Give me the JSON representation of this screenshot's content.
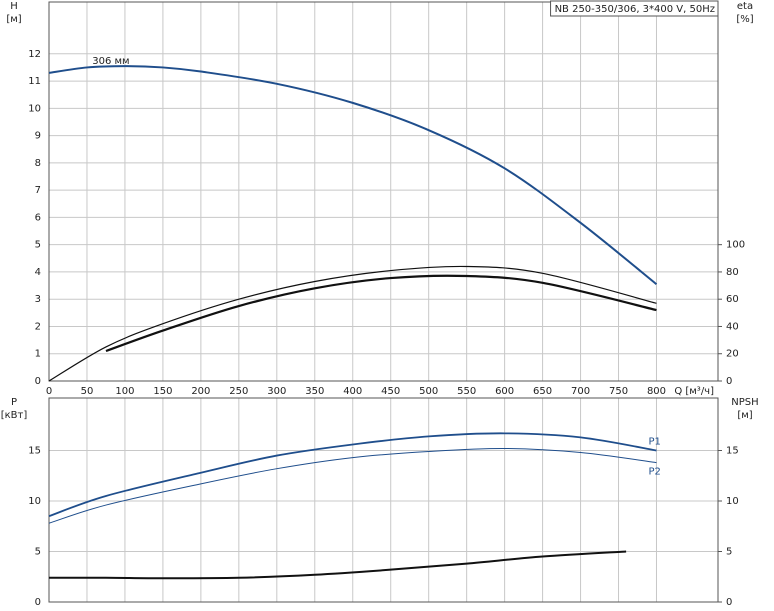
{
  "chart_data": [
    {
      "type": "line",
      "title": "NB 250-350/306, 3*400 V, 50Hz",
      "x_label": "Q [м³/ч]",
      "y_label": [
        "H",
        "[м]"
      ],
      "y2_label": [
        "eta",
        "[%]"
      ],
      "xlim": [
        0,
        881
      ],
      "ylim": [
        0,
        13.9
      ],
      "y2lim": [
        0,
        278
      ],
      "grid": true,
      "xticks": [
        0,
        50,
        100,
        150,
        200,
        250,
        300,
        350,
        400,
        450,
        500,
        550,
        600,
        650,
        700,
        750,
        800
      ],
      "yticks": [
        0,
        1,
        2,
        3,
        4,
        5,
        6,
        7,
        8,
        9,
        10,
        11,
        12
      ],
      "y2ticks": [
        0,
        20,
        40,
        60,
        80,
        100
      ],
      "series": [
        {
          "name": "306 мм",
          "color": "#1f4e8c",
          "line_width": 2,
          "x": [
            0,
            50,
            100,
            150,
            200,
            300,
            400,
            500,
            600,
            700,
            800
          ],
          "values": [
            11.3,
            11.5,
            11.55,
            11.5,
            11.35,
            10.9,
            10.2,
            9.2,
            7.8,
            5.8,
            3.55
          ]
        },
        {
          "color": "#111111",
          "line_width": 1.2,
          "axis": "y2",
          "x": [
            0,
            75,
            150,
            250,
            350,
            450,
            550,
            650,
            800
          ],
          "values": [
            0,
            25,
            42,
            60,
            73,
            81,
            84,
            79,
            57
          ]
        },
        {
          "color": "#111111",
          "line_width": 2.2,
          "axis": "y2",
          "x": [
            75,
            150,
            250,
            350,
            450,
            550,
            650,
            800
          ],
          "values": [
            22,
            37,
            55,
            68,
            75.5,
            77,
            72,
            52
          ]
        }
      ]
    },
    {
      "type": "line",
      "y_label": [
        "P",
        "[кВт]"
      ],
      "y2_label": [
        "NPSH",
        "[м]"
      ],
      "xlim": [
        0,
        881
      ],
      "ylim": [
        0,
        20.2
      ],
      "y2lim": [
        0,
        20.2
      ],
      "grid": true,
      "yticks": [
        0,
        5,
        10,
        15
      ],
      "y2ticks": [
        0,
        5,
        10,
        15
      ],
      "series": [
        {
          "name": "P1",
          "color": "#1f4e8c",
          "line_width": 1.8,
          "x": [
            0,
            75,
            200,
            300,
            400,
            500,
            600,
            700,
            800
          ],
          "values": [
            8.5,
            10.5,
            12.8,
            14.5,
            15.6,
            16.4,
            16.7,
            16.3,
            15.0
          ]
        },
        {
          "name": "P2",
          "color": "#1f4e8c",
          "line_width": 1,
          "x": [
            0,
            75,
            200,
            300,
            400,
            500,
            600,
            700,
            800
          ],
          "values": [
            7.8,
            9.6,
            11.7,
            13.2,
            14.3,
            14.9,
            15.2,
            14.8,
            13.8
          ]
        },
        {
          "color": "#111111",
          "line_width": 2,
          "axis": "y2",
          "x": [
            0,
            75,
            150,
            250,
            350,
            450,
            550,
            650,
            760
          ],
          "values": [
            2.4,
            2.4,
            2.35,
            2.4,
            2.7,
            3.2,
            3.8,
            4.5,
            5.0
          ]
        }
      ]
    }
  ]
}
